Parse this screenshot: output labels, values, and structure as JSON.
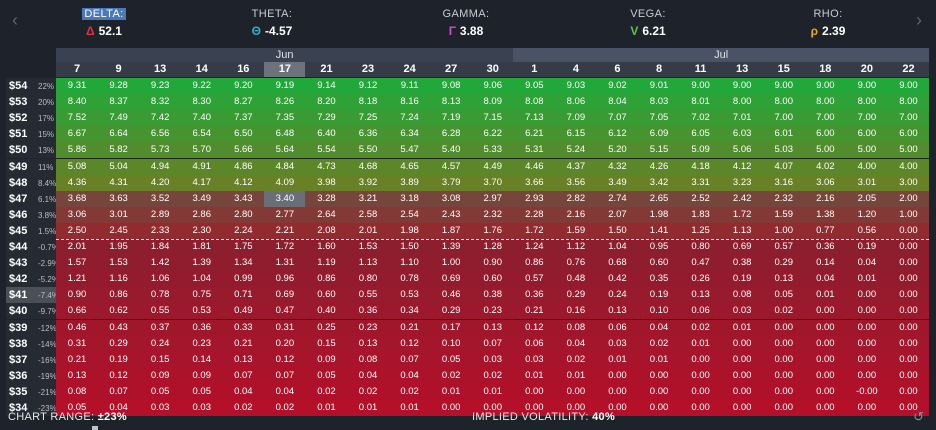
{
  "greeks": [
    {
      "name": "DELTA:",
      "symbol": "Δ",
      "value": "52.1",
      "color": "#e0303f",
      "selected": true
    },
    {
      "name": "THETA:",
      "symbol": "Θ",
      "value": "-4.57",
      "color": "#2bb3c6",
      "selected": false
    },
    {
      "name": "GAMMA:",
      "symbol": "Γ",
      "value": "3.88",
      "color": "#d64bd6",
      "selected": false
    },
    {
      "name": "VEGA:",
      "symbol": "V",
      "value": "6.21",
      "color": "#5cc84a",
      "selected": false
    },
    {
      "name": "RHO:",
      "symbol": "ρ",
      "value": "2.39",
      "color": "#e6a72c",
      "selected": false
    }
  ],
  "nav": {
    "prev": "‹",
    "next": "›"
  },
  "months": [
    {
      "label": "Jun",
      "span": 11
    },
    {
      "label": "Jul",
      "span": 10
    }
  ],
  "days": [
    "7",
    "9",
    "13",
    "14",
    "16",
    "17",
    "21",
    "23",
    "24",
    "27",
    "30",
    "1",
    "4",
    "6",
    "8",
    "11",
    "13",
    "15",
    "18",
    "20",
    "22"
  ],
  "selected_day_index": 5,
  "selected_row_index": 13,
  "dashed_after_row": 15,
  "rows": [
    {
      "price": "$54",
      "pct": "22%",
      "vals": [
        "9.31",
        "9.28",
        "9.23",
        "9.22",
        "9.20",
        "9.19",
        "9.14",
        "9.12",
        "9.11",
        "9.08",
        "9.06",
        "9.05",
        "9.03",
        "9.02",
        "9.01",
        "9.00",
        "9.00",
        "9.00",
        "9.00",
        "9.00",
        "9.00"
      ]
    },
    {
      "price": "$53",
      "pct": "20%",
      "vals": [
        "8.40",
        "8.37",
        "8.32",
        "8.30",
        "8.27",
        "8.26",
        "8.20",
        "8.18",
        "8.16",
        "8.13",
        "8.09",
        "8.08",
        "8.06",
        "8.04",
        "8.03",
        "8.01",
        "8.00",
        "8.00",
        "8.00",
        "8.00",
        "8.00"
      ]
    },
    {
      "price": "$52",
      "pct": "17%",
      "vals": [
        "7.52",
        "7.49",
        "7.42",
        "7.40",
        "7.37",
        "7.35",
        "7.29",
        "7.25",
        "7.24",
        "7.19",
        "7.15",
        "7.13",
        "7.09",
        "7.07",
        "7.05",
        "7.02",
        "7.01",
        "7.00",
        "7.00",
        "7.00",
        "7.00"
      ]
    },
    {
      "price": "$51",
      "pct": "15%",
      "vals": [
        "6.67",
        "6.64",
        "6.56",
        "6.54",
        "6.50",
        "6.48",
        "6.40",
        "6.36",
        "6.34",
        "6.28",
        "6.22",
        "6.21",
        "6.15",
        "6.12",
        "6.09",
        "6.05",
        "6.03",
        "6.01",
        "6.00",
        "6.00",
        "6.00"
      ]
    },
    {
      "price": "$50",
      "pct": "13%",
      "vals": [
        "5.86",
        "5.82",
        "5.73",
        "5.70",
        "5.66",
        "5.64",
        "5.54",
        "5.50",
        "5.47",
        "5.40",
        "5.33",
        "5.31",
        "5.24",
        "5.20",
        "5.15",
        "5.09",
        "5.06",
        "5.03",
        "5.00",
        "5.00",
        "5.00"
      ]
    },
    {
      "price": "$49",
      "pct": "11%",
      "vals": [
        "5.08",
        "5.04",
        "4.94",
        "4.91",
        "4.86",
        "4.84",
        "4.73",
        "4.68",
        "4.65",
        "4.57",
        "4.49",
        "4.46",
        "4.37",
        "4.32",
        "4.26",
        "4.18",
        "4.12",
        "4.07",
        "4.02",
        "4.00",
        "4.00"
      ]
    },
    {
      "price": "$48",
      "pct": "8.4%",
      "vals": [
        "4.36",
        "4.31",
        "4.20",
        "4.17",
        "4.12",
        "4.09",
        "3.98",
        "3.92",
        "3.89",
        "3.79",
        "3.70",
        "3.66",
        "3.56",
        "3.49",
        "3.42",
        "3.31",
        "3.23",
        "3.16",
        "3.06",
        "3.01",
        "3.00"
      ]
    },
    {
      "price": "$47",
      "pct": "6.1%",
      "vals": [
        "3.68",
        "3.63",
        "3.52",
        "3.49",
        "3.43",
        "3.40",
        "3.28",
        "3.21",
        "3.18",
        "3.08",
        "2.97",
        "2.93",
        "2.82",
        "2.74",
        "2.65",
        "2.52",
        "2.42",
        "2.32",
        "2.16",
        "2.05",
        "2.00"
      ]
    },
    {
      "price": "$46",
      "pct": "3.8%",
      "vals": [
        "3.06",
        "3.01",
        "2.89",
        "2.86",
        "2.80",
        "2.77",
        "2.64",
        "2.58",
        "2.54",
        "2.43",
        "2.32",
        "2.28",
        "2.16",
        "2.07",
        "1.98",
        "1.83",
        "1.72",
        "1.59",
        "1.38",
        "1.20",
        "1.00"
      ]
    },
    {
      "price": "$45",
      "pct": "1.5%",
      "vals": [
        "2.50",
        "2.45",
        "2.33",
        "2.30",
        "2.24",
        "2.21",
        "2.08",
        "2.01",
        "1.98",
        "1.87",
        "1.76",
        "1.72",
        "1.59",
        "1.50",
        "1.41",
        "1.25",
        "1.13",
        "1.00",
        "0.77",
        "0.56",
        "0.00"
      ]
    },
    {
      "price": "$44",
      "pct": "-0.7%",
      "vals": [
        "2.01",
        "1.95",
        "1.84",
        "1.81",
        "1.75",
        "1.72",
        "1.60",
        "1.53",
        "1.50",
        "1.39",
        "1.28",
        "1.24",
        "1.12",
        "1.04",
        "0.95",
        "0.80",
        "0.69",
        "0.57",
        "0.36",
        "0.19",
        "0.00"
      ]
    },
    {
      "price": "$43",
      "pct": "-2.9%",
      "vals": [
        "1.57",
        "1.53",
        "1.42",
        "1.39",
        "1.34",
        "1.31",
        "1.19",
        "1.13",
        "1.10",
        "1.00",
        "0.90",
        "0.86",
        "0.76",
        "0.68",
        "0.60",
        "0.47",
        "0.38",
        "0.29",
        "0.14",
        "0.04",
        "0.00"
      ]
    },
    {
      "price": "$42",
      "pct": "-5.2%",
      "vals": [
        "1.21",
        "1.16",
        "1.06",
        "1.04",
        "0.99",
        "0.96",
        "0.86",
        "0.80",
        "0.78",
        "0.69",
        "0.60",
        "0.57",
        "0.48",
        "0.42",
        "0.35",
        "0.26",
        "0.19",
        "0.13",
        "0.04",
        "0.01",
        "0.00"
      ]
    },
    {
      "price": "$41",
      "pct": "-7.4%",
      "vals": [
        "0.90",
        "0.86",
        "0.78",
        "0.75",
        "0.71",
        "0.69",
        "0.60",
        "0.55",
        "0.53",
        "0.46",
        "0.38",
        "0.36",
        "0.29",
        "0.24",
        "0.19",
        "0.13",
        "0.08",
        "0.05",
        "0.01",
        "0.00",
        "0.00"
      ]
    },
    {
      "price": "$40",
      "pct": "-9.7%",
      "vals": [
        "0.66",
        "0.62",
        "0.55",
        "0.53",
        "0.49",
        "0.47",
        "0.40",
        "0.36",
        "0.34",
        "0.29",
        "0.23",
        "0.21",
        "0.16",
        "0.13",
        "0.10",
        "0.06",
        "0.03",
        "0.02",
        "0.00",
        "0.00",
        "0.00"
      ]
    },
    {
      "price": "$39",
      "pct": "-12%",
      "vals": [
        "0.46",
        "0.43",
        "0.37",
        "0.36",
        "0.33",
        "0.31",
        "0.25",
        "0.23",
        "0.21",
        "0.17",
        "0.13",
        "0.12",
        "0.08",
        "0.06",
        "0.04",
        "0.02",
        "0.01",
        "0.00",
        "0.00",
        "0.00",
        "0.00"
      ]
    },
    {
      "price": "$38",
      "pct": "-14%",
      "vals": [
        "0.31",
        "0.29",
        "0.24",
        "0.23",
        "0.21",
        "0.20",
        "0.15",
        "0.13",
        "0.12",
        "0.10",
        "0.07",
        "0.06",
        "0.04",
        "0.03",
        "0.02",
        "0.01",
        "0.00",
        "0.00",
        "0.00",
        "0.00",
        "0.00"
      ]
    },
    {
      "price": "$37",
      "pct": "-16%",
      "vals": [
        "0.21",
        "0.19",
        "0.15",
        "0.14",
        "0.13",
        "0.12",
        "0.09",
        "0.08",
        "0.07",
        "0.05",
        "0.03",
        "0.03",
        "0.02",
        "0.01",
        "0.01",
        "0.00",
        "0.00",
        "0.00",
        "0.00",
        "0.00",
        "0.00"
      ]
    },
    {
      "price": "$36",
      "pct": "-19%",
      "vals": [
        "0.13",
        "0.12",
        "0.09",
        "0.09",
        "0.07",
        "0.07",
        "0.05",
        "0.04",
        "0.04",
        "0.02",
        "0.02",
        "0.01",
        "0.01",
        "0.00",
        "0.00",
        "0.00",
        "0.00",
        "0.00",
        "0.00",
        "0.00",
        "0.00"
      ]
    },
    {
      "price": "$35",
      "pct": "-21%",
      "vals": [
        "0.08",
        "0.07",
        "0.05",
        "0.05",
        "0.04",
        "0.04",
        "0.02",
        "0.02",
        "0.02",
        "0.01",
        "0.01",
        "0.00",
        "0.00",
        "0.00",
        "0.00",
        "0.00",
        "0.00",
        "0.00",
        "0.00",
        "-0.00",
        "0.00"
      ]
    },
    {
      "price": "$34",
      "pct": "-23%",
      "vals": [
        "0.05",
        "0.04",
        "0.03",
        "0.03",
        "0.02",
        "0.02",
        "0.01",
        "0.01",
        "0.01",
        "0.00",
        "0.00",
        "0.00",
        "0.00",
        "0.00",
        "0.00",
        "0.00",
        "0.00",
        "0.00",
        "0.00",
        "0.00",
        "0.00"
      ]
    }
  ],
  "footer": {
    "range_label": "CHART RANGE:",
    "range_value": "±23%",
    "iv_label": "IMPLIED VOLATILITY:",
    "iv_value": "40%",
    "reset_icon": "↺"
  },
  "colors": {
    "profit_strong": "#22a83a",
    "profit_weak": "#5a3a3a",
    "loss": "#b01030"
  }
}
